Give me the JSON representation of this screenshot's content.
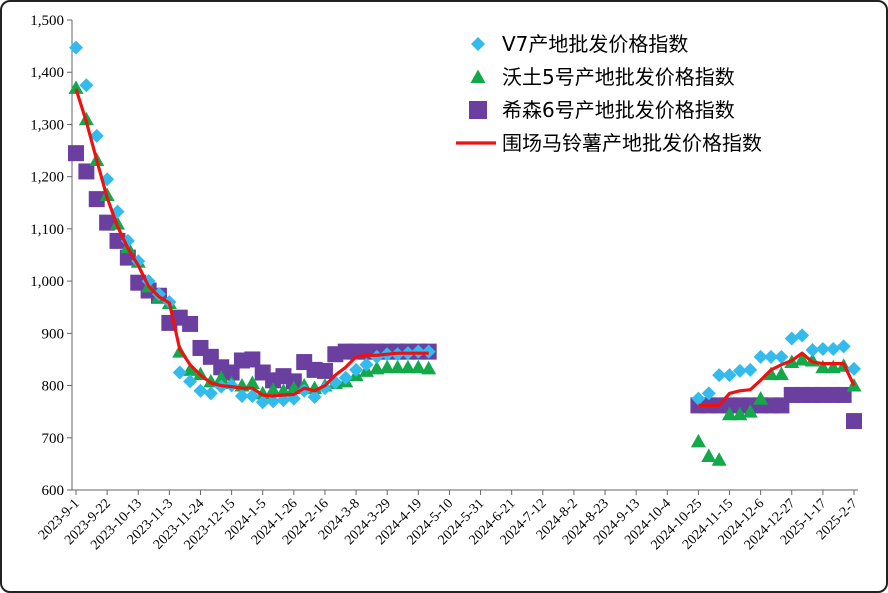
{
  "chart_data": {
    "type": "line",
    "title": "",
    "xlabel": "",
    "ylabel": "",
    "ylim": [
      600,
      1500
    ],
    "y_ticks": [
      "600",
      "700",
      "800",
      "900",
      "1,000",
      "1,100",
      "1,200",
      "1,300",
      "1,400",
      "1,500"
    ],
    "x_tick_labels": [
      "2023-9-1",
      "2023-9-22",
      "2023-10-13",
      "2023-11-3",
      "2023-11-24",
      "2023-12-15",
      "2024-1-5",
      "2024-1-26",
      "2024-2-16",
      "2024-3-8",
      "2024-3-29",
      "2024-4-19",
      "2024-5-10",
      "2024-5-31",
      "2024-6-21",
      "2024-7-12",
      "2024-8-2",
      "2024-8-23",
      "2024-9-13",
      "2024-10-4",
      "2024-10-25",
      "2024-11-15",
      "2024-12-6",
      "2024-12-27",
      "2025-1-17",
      "2025-2-7"
    ],
    "grid": false,
    "legend_position": "top-right",
    "dates": [
      "2023-9-1",
      "2023-9-8",
      "2023-9-15",
      "2023-9-22",
      "2023-9-29",
      "2023-10-6",
      "2023-10-13",
      "2023-10-20",
      "2023-10-27",
      "2023-11-3",
      "2023-11-10",
      "2023-11-17",
      "2023-11-24",
      "2023-12-1",
      "2023-12-8",
      "2023-12-15",
      "2023-12-22",
      "2023-12-29",
      "2024-1-5",
      "2024-1-12",
      "2024-1-19",
      "2024-1-26",
      "2024-2-2",
      "2024-2-9",
      "2024-2-16",
      "2024-2-23",
      "2024-3-1",
      "2024-3-8",
      "2024-3-15",
      "2024-3-22",
      "2024-3-29",
      "2024-4-5",
      "2024-4-12",
      "2024-4-19",
      "2024-4-26",
      "2024-5-3",
      "2024-5-10",
      "2024-5-17",
      "2024-5-24",
      "2024-5-31",
      "2024-6-7",
      "2024-6-14",
      "2024-6-21",
      "2024-6-28",
      "2024-7-5",
      "2024-7-12",
      "2024-7-19",
      "2024-7-26",
      "2024-8-2",
      "2024-8-9",
      "2024-8-16",
      "2024-8-23",
      "2024-8-30",
      "2024-9-6",
      "2024-9-13",
      "2024-9-20",
      "2024-9-27",
      "2024-10-4",
      "2024-10-11",
      "2024-10-18",
      "2024-10-25",
      "2024-11-1",
      "2024-11-8",
      "2024-11-15",
      "2024-11-22",
      "2024-11-29",
      "2024-12-6",
      "2024-12-13",
      "2024-12-20",
      "2024-12-27",
      "2025-1-3",
      "2025-1-10",
      "2025-1-17",
      "2025-1-24",
      "2025-1-31",
      "2025-2-7"
    ],
    "series": [
      {
        "name": "V7产地批发价格指数",
        "marker": "diamond",
        "color": "#33bbee",
        "values": [
          1447,
          1375,
          1278,
          1195,
          1133,
          1077,
          1038,
          1000,
          975,
          960,
          825,
          808,
          790,
          785,
          798,
          800,
          780,
          780,
          768,
          770,
          772,
          775,
          790,
          778,
          795,
          806,
          815,
          830,
          840,
          855,
          860,
          860,
          862,
          865,
          865,
          null,
          null,
          null,
          null,
          null,
          null,
          null,
          null,
          null,
          null,
          null,
          null,
          null,
          null,
          null,
          null,
          null,
          null,
          null,
          null,
          null,
          null,
          null,
          null,
          null,
          775,
          785,
          820,
          820,
          828,
          830,
          855,
          855,
          855,
          890,
          896,
          868,
          870,
          870,
          875,
          832
        ]
      },
      {
        "name": "沃土5号产地批发价格指数",
        "marker": "triangle",
        "color": "#13a84a",
        "values": [
          1370,
          1310,
          1232,
          1165,
          1110,
          1065,
          1037,
          990,
          970,
          958,
          865,
          830,
          822,
          808,
          815,
          805,
          800,
          805,
          785,
          792,
          790,
          795,
          800,
          795,
          800,
          805,
          808,
          820,
          828,
          833,
          835,
          835,
          835,
          835,
          833,
          null,
          null,
          null,
          null,
          null,
          null,
          null,
          null,
          null,
          null,
          null,
          null,
          null,
          null,
          null,
          null,
          null,
          null,
          null,
          null,
          null,
          null,
          null,
          null,
          null,
          693,
          665,
          658,
          745,
          745,
          750,
          775,
          822,
          822,
          845,
          850,
          848,
          835,
          835,
          838,
          800
        ]
      },
      {
        "name": "希森6号产地批发价格指数",
        "marker": "square",
        "color": "#6b3fa0",
        "values": [
          1245,
          1210,
          1157,
          1112,
          1077,
          1045,
          997,
          982,
          972,
          920,
          930,
          918,
          872,
          855,
          835,
          825,
          848,
          850,
          825,
          810,
          818,
          808,
          845,
          830,
          828,
          860,
          865,
          865,
          865,
          865,
          865,
          865,
          865,
          865,
          865,
          null,
          null,
          null,
          null,
          null,
          null,
          null,
          null,
          null,
          null,
          null,
          null,
          null,
          null,
          null,
          null,
          null,
          null,
          null,
          null,
          null,
          null,
          null,
          null,
          null,
          762,
          762,
          762,
          762,
          762,
          762,
          762,
          762,
          762,
          782,
          782,
          782,
          782,
          782,
          782,
          732
        ]
      },
      {
        "name": "围场马铃薯产地批发价格指数",
        "marker": "line",
        "color": "#ee1111",
        "values": [
          1368,
          1305,
          1232,
          1160,
          1105,
          1063,
          1030,
          990,
          970,
          958,
          870,
          840,
          820,
          805,
          800,
          798,
          795,
          795,
          782,
          780,
          782,
          783,
          795,
          790,
          800,
          820,
          835,
          855,
          858,
          858,
          860,
          862,
          862,
          862,
          862,
          null,
          null,
          null,
          null,
          null,
          null,
          null,
          null,
          null,
          null,
          null,
          null,
          null,
          null,
          null,
          null,
          null,
          null,
          null,
          null,
          null,
          null,
          null,
          null,
          null,
          762,
          762,
          762,
          785,
          790,
          792,
          810,
          830,
          840,
          848,
          862,
          845,
          842,
          842,
          842,
          800
        ]
      }
    ]
  }
}
